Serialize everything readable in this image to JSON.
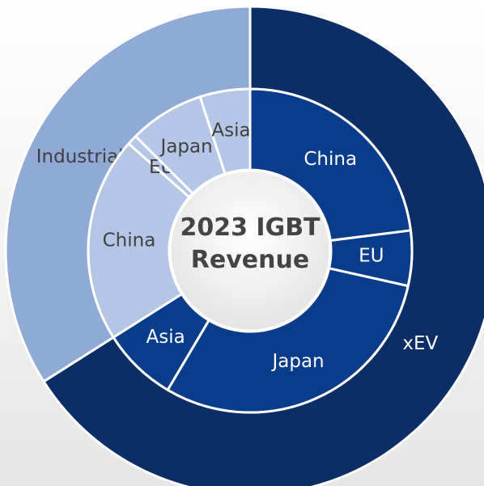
{
  "chart_data": {
    "type": "sunburst",
    "title": "2023 IGBT Revenue",
    "categories": [
      "xEV",
      "Industrial"
    ],
    "values": [
      66,
      34
    ],
    "colors": [
      "#0c2e66",
      "#8eaad5"
    ],
    "label_colors": [
      "#ffffff",
      "#404040"
    ],
    "children": [
      {
        "categories": [
          "China",
          "EU",
          "Japan",
          "Asia"
        ],
        "values": [
          23,
          5.5,
          30,
          7.5
        ],
        "color": "#0a3c8c"
      },
      {
        "categories": [
          "China",
          "EU",
          "Japan",
          "Asia"
        ],
        "values": [
          20.5,
          1,
          7.5,
          5
        ],
        "color": "#b4c6e6"
      }
    ]
  }
}
